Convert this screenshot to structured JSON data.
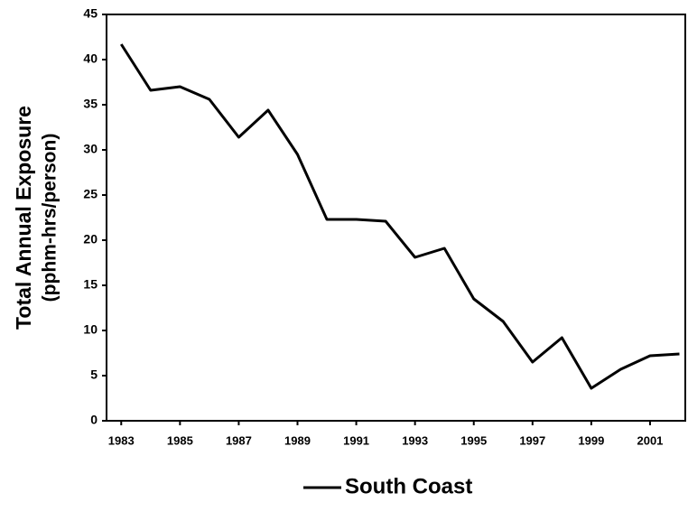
{
  "chart_data": {
    "type": "line",
    "x": [
      1983,
      1984,
      1985,
      1986,
      1987,
      1988,
      1989,
      1990,
      1991,
      1992,
      1993,
      1994,
      1995,
      1996,
      1997,
      1998,
      1999,
      2000,
      2001,
      2002
    ],
    "series": [
      {
        "name": "South Coast",
        "color": "#000000",
        "values": [
          41.7,
          36.6,
          37.0,
          35.6,
          31.4,
          34.4,
          29.5,
          22.3,
          22.3,
          22.1,
          18.1,
          19.1,
          13.5,
          11.0,
          6.5,
          9.2,
          3.6,
          5.7,
          7.2,
          7.4
        ]
      }
    ],
    "ylabel": [
      "Total Annual Exposure",
      "(pphm-hrs/person)"
    ],
    "xlim": [
      1982.5,
      2002.2
    ],
    "ylim": [
      0,
      45
    ],
    "xticks": [
      1983,
      1985,
      1987,
      1989,
      1991,
      1993,
      1995,
      1997,
      1999,
      2001
    ],
    "yticks": [
      0,
      5,
      10,
      15,
      20,
      25,
      30,
      35,
      40,
      45
    ],
    "legend": "bottom"
  }
}
